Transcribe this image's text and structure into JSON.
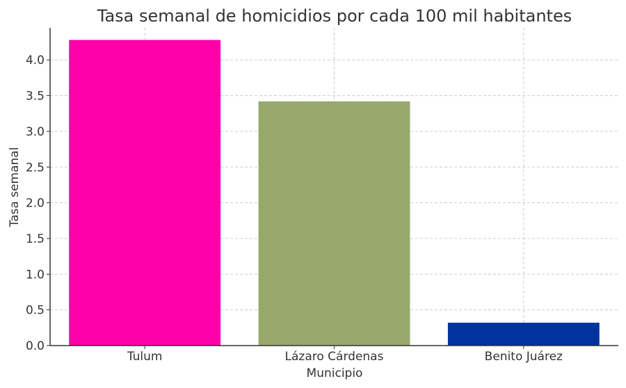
{
  "chart_data": {
    "type": "bar",
    "title": "Tasa semanal de homicidios por cada 100 mil habitantes",
    "xlabel": "Municipio",
    "ylabel": "Tasa semanal",
    "categories": [
      "Tulum",
      "Lázaro Cárdenas",
      "Benito Juárez"
    ],
    "values": [
      4.28,
      3.42,
      0.32
    ],
    "colors": [
      "#ff00aa",
      "#98a86d",
      "#0033a0"
    ],
    "ylim": [
      0,
      4.45
    ],
    "yticks": [
      0.0,
      0.5,
      1.0,
      1.5,
      2.0,
      2.5,
      3.0,
      3.5,
      4.0
    ],
    "ytick_labels": [
      "0.0",
      "0.5",
      "1.0",
      "1.5",
      "2.0",
      "2.5",
      "3.0",
      "3.5",
      "4.0"
    ],
    "grid": true,
    "legend": "none"
  }
}
